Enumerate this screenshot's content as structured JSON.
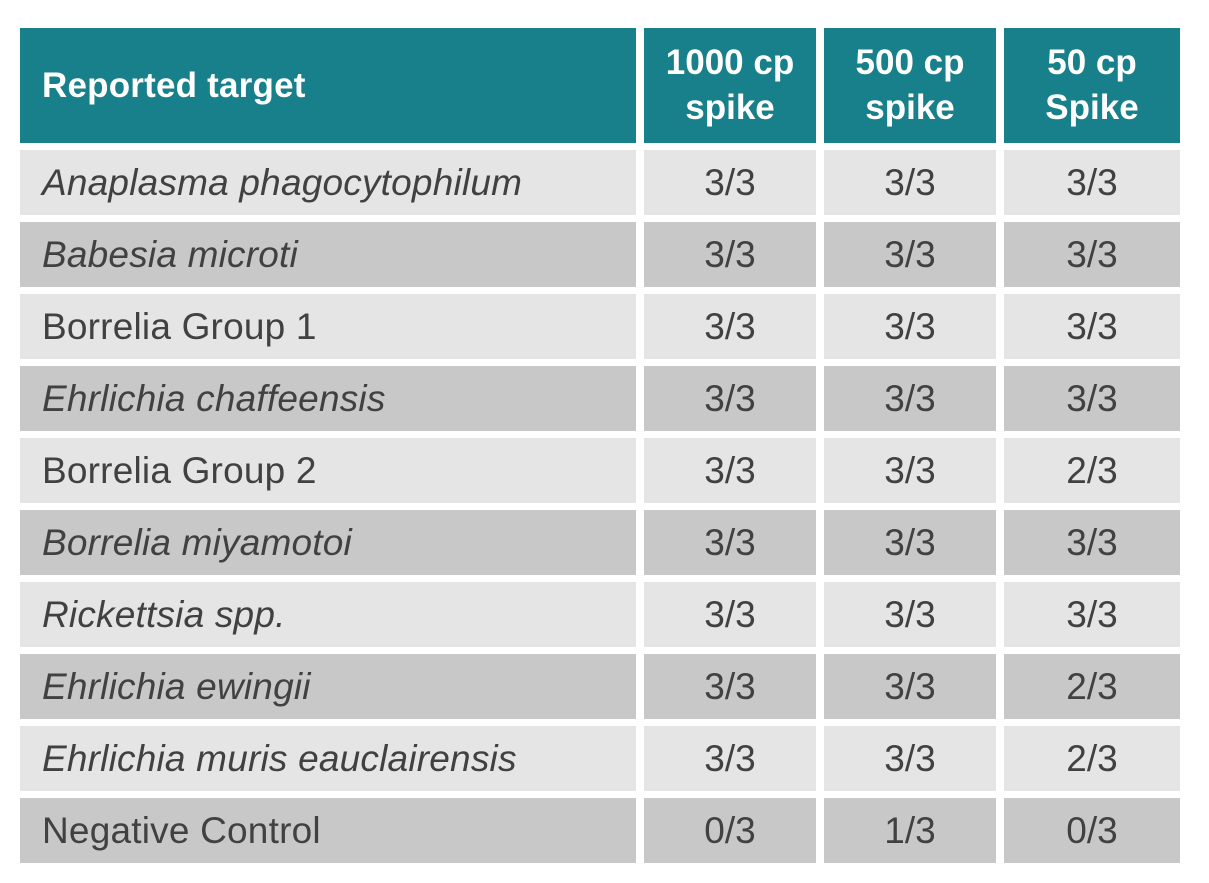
{
  "colors": {
    "header_bg": "#17808a",
    "header_text": "#ffffff",
    "row_light": "#e5e5e5",
    "row_dark": "#c8c8c8",
    "text": "#414141",
    "page_bg": "#ffffff"
  },
  "table": {
    "headers": [
      "Reported target",
      "1000 cp\nspike",
      "500 cp\nspike",
      "50 cp\nSpike"
    ],
    "rows": [
      {
        "target": "Anaplasma phagocytophilum",
        "italic": true,
        "values": [
          "3/3",
          "3/3",
          "3/3"
        ]
      },
      {
        "target": "Babesia microti",
        "italic": true,
        "values": [
          "3/3",
          "3/3",
          "3/3"
        ]
      },
      {
        "target": "Borrelia Group 1",
        "italic": false,
        "values": [
          "3/3",
          "3/3",
          "3/3"
        ]
      },
      {
        "target": "Ehrlichia chaffeensis",
        "italic": true,
        "values": [
          "3/3",
          "3/3",
          "3/3"
        ]
      },
      {
        "target": "Borrelia Group 2",
        "italic": false,
        "values": [
          "3/3",
          "3/3",
          "2/3"
        ]
      },
      {
        "target": "Borrelia miyamotoi",
        "italic": true,
        "values": [
          "3/3",
          "3/3",
          "3/3"
        ]
      },
      {
        "target": "Rickettsia spp.",
        "italic": true,
        "values": [
          "3/3",
          "3/3",
          "3/3"
        ]
      },
      {
        "target": "Ehrlichia ewingii",
        "italic": true,
        "values": [
          "3/3",
          "3/3",
          "2/3"
        ]
      },
      {
        "target": "Ehrlichia muris eauclairensis",
        "italic": true,
        "values": [
          "3/3",
          "3/3",
          "2/3"
        ]
      },
      {
        "target": "Negative Control",
        "italic": false,
        "values": [
          "0/3",
          "1/3",
          "0/3"
        ]
      }
    ]
  }
}
